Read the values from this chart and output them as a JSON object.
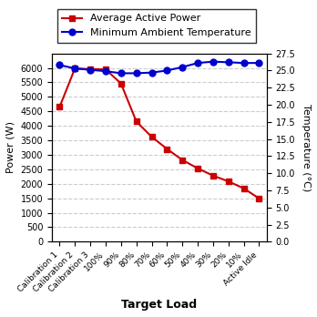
{
  "categories": [
    "Calibration 1",
    "Calibration 2",
    "Calibration 3",
    "100%",
    "90%",
    "80%",
    "70%",
    "60%",
    "50%",
    "40%",
    "30%",
    "20%",
    "10%",
    "Active Idle"
  ],
  "power_values": [
    4650,
    5980,
    5960,
    5950,
    5460,
    4150,
    3620,
    3200,
    2820,
    2530,
    2280,
    2080,
    1840,
    1490
  ],
  "temp_values": [
    25.8,
    25.3,
    25.1,
    24.9,
    24.6,
    24.6,
    24.7,
    25.0,
    25.5,
    26.1,
    26.3,
    26.2,
    26.1,
    26.1
  ],
  "power_color": "#cc0000",
  "temp_color": "#0000cc",
  "power_label": "Average Active Power",
  "temp_label": "Minimum Ambient Temperature",
  "xlabel": "Target Load",
  "ylabel_left": "Power (W)",
  "ylabel_right": "Temperature (°C)",
  "ylim_left": [
    0,
    6500
  ],
  "ylim_right": [
    0,
    27.5
  ],
  "yticks_left": [
    0,
    500,
    1000,
    1500,
    2000,
    2500,
    3000,
    3500,
    4000,
    4500,
    5000,
    5500,
    6000
  ],
  "yticks_right": [
    0.0,
    2.5,
    5.0,
    7.5,
    10.0,
    12.5,
    15.0,
    17.5,
    20.0,
    22.5,
    25.0,
    27.5
  ],
  "background_color": "#ffffff",
  "grid_color": "#cccccc",
  "legend_fontsize": 8,
  "tick_fontsize": 7,
  "xlabel_fontsize": 9,
  "ylabel_fontsize": 8
}
